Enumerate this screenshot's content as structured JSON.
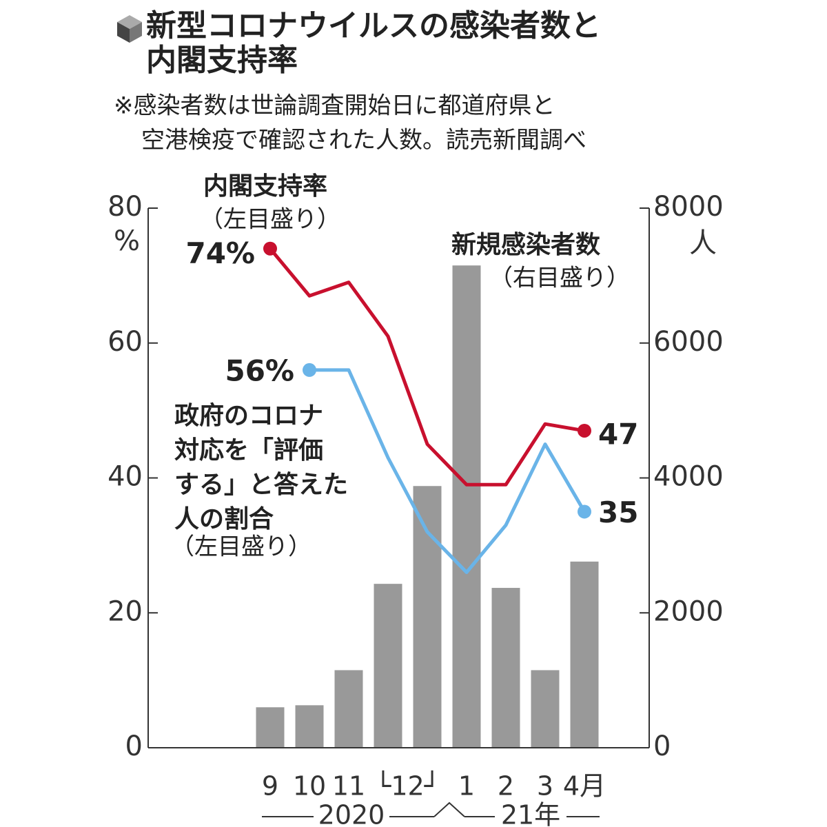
{
  "chart_data": {
    "type": "bar",
    "title": [
      "新型コロナウイルスの感染者数と",
      "内閣支持率"
    ],
    "note": [
      "※感染者数は世論調査開始日に都道府県と",
      "空港検疫で確認された人数。読売新聞調べ"
    ],
    "categories": [
      "9",
      "10",
      "11",
      "└12┘",
      null,
      "1",
      "2",
      "3",
      "4月"
    ],
    "year_labels": [
      "2020",
      "21年"
    ],
    "ylim": [
      0,
      80
    ],
    "yticks": [
      0,
      20,
      40,
      60,
      80
    ],
    "y_unit": "%",
    "y2lim": [
      0,
      8000
    ],
    "y2ticks": [
      0,
      2000,
      4000,
      6000,
      8000
    ],
    "y2_unit": "人",
    "series": [
      {
        "name": "新規感染者数",
        "type": "bar",
        "axis": "y2",
        "color": "#999999",
        "axis_note": "（右目盛り）",
        "values": [
          600,
          630,
          1150,
          2430,
          3880,
          7150,
          2370,
          1150,
          2760
        ]
      },
      {
        "name": "内閣支持率",
        "type": "line",
        "color": "#c8102e",
        "axis_note": "（左目盛り）",
        "values": [
          74,
          67,
          69,
          61,
          45,
          39,
          39,
          48,
          47
        ],
        "value_labels": [
          "74%",
          null,
          null,
          null,
          null,
          null,
          null,
          null,
          "47"
        ]
      },
      {
        "name": "政府のコロナ対応を「評価する」と答えた人の割合",
        "type": "line",
        "color": "#6ab4e8",
        "axis_note": "（左目盛り）",
        "values": [
          null,
          56,
          56,
          43,
          32,
          26,
          33,
          45,
          35
        ],
        "value_labels": [
          null,
          "56%",
          null,
          null,
          null,
          null,
          null,
          null,
          "35"
        ]
      }
    ]
  }
}
